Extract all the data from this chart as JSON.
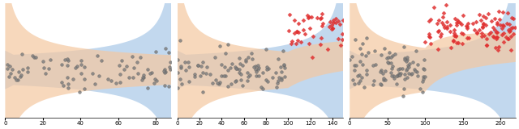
{
  "panels": [
    {
      "xlim": [
        0,
        88
      ],
      "xticks": [
        0,
        20,
        40,
        60,
        80
      ],
      "n_null": 88,
      "n_alt": 0,
      "changepoint": 9999,
      "xmax_band": 88
    },
    {
      "xlim": [
        0,
        150
      ],
      "xticks": [
        0,
        20,
        40,
        60,
        80,
        100,
        120,
        140
      ],
      "n_null": 100,
      "n_alt": 50,
      "changepoint": 100,
      "xmax_band": 150
    },
    {
      "xlim": [
        0,
        220
      ],
      "xticks": [
        0,
        50,
        100,
        150,
        200
      ],
      "n_null": 100,
      "n_alt": 120,
      "changepoint": 100,
      "xmax_band": 220
    }
  ],
  "null_y_center": 0.0,
  "null_y_spread": 0.55,
  "alt_y_center": 2.2,
  "alt_y_spread": 0.55,
  "band1_color": "#a8c8e8",
  "band2_color": "#f5c8a0",
  "null_dot_color": "#808080",
  "alt_dot_color": "#e03030",
  "dot_alpha": 0.85,
  "dot_size": 7,
  "band_alpha": 0.7,
  "ylim": [
    -2.5,
    3.5
  ],
  "figsize": [
    6.4,
    1.6
  ],
  "dpi": 100
}
